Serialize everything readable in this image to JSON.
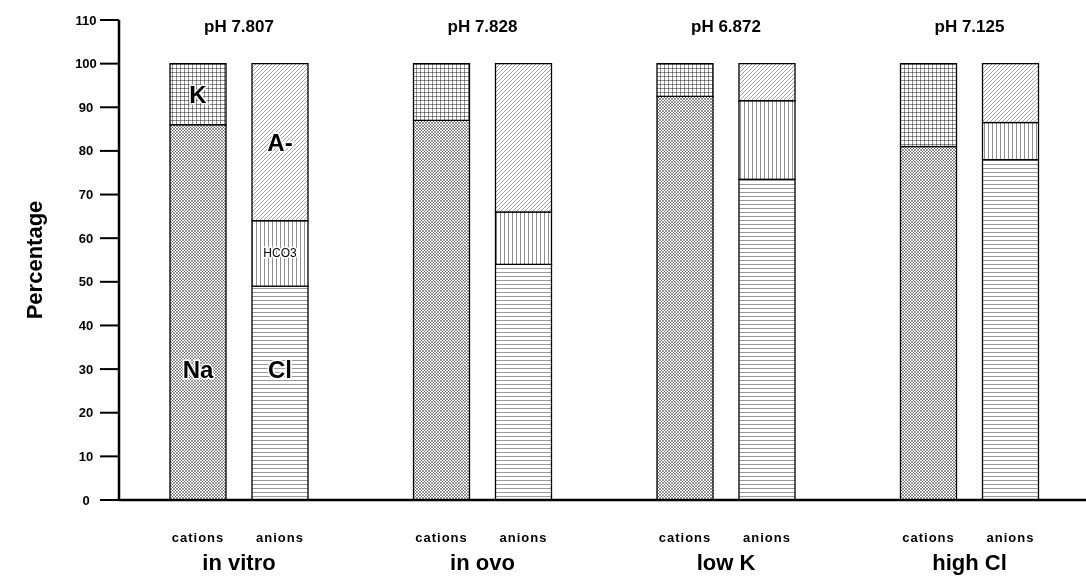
{
  "chart_data": {
    "type": "bar",
    "stacked": true,
    "ylabel": "Percentage",
    "categories": [
      "cations",
      "anions",
      "cations",
      "anions",
      "cations",
      "anions",
      "cations",
      "anions"
    ],
    "series": [
      {
        "name": "Na",
        "color": "#000000",
        "values": [
          86,
          null,
          87,
          null,
          92.5,
          null,
          81,
          null
        ]
      },
      {
        "name": "K",
        "color": "#000000",
        "values": [
          14,
          null,
          13,
          null,
          7.5,
          null,
          19,
          null
        ]
      },
      {
        "name": "Cl",
        "color": "#000000",
        "values": [
          null,
          49,
          null,
          54,
          null,
          73.5,
          null,
          78
        ]
      },
      {
        "name": "HCO3",
        "color": "#000000",
        "values": [
          null,
          15,
          null,
          12,
          null,
          18,
          null,
          8.5
        ]
      },
      {
        "name": "A-",
        "color": "#000000",
        "values": [
          null,
          36,
          null,
          34,
          null,
          8.5,
          null,
          13.5
        ]
      }
    ],
    "ylim": [
      0,
      110
    ],
    "yticks": [
      0,
      10,
      20,
      30,
      40,
      50,
      60,
      70,
      80,
      90,
      100,
      110
    ],
    "annotations": [
      "pH 7.807",
      "pH 7.828",
      "pH 6.872",
      "pH 7.125",
      "in vitro",
      "in ovo",
      "low K",
      "high Cl"
    ]
  }
}
